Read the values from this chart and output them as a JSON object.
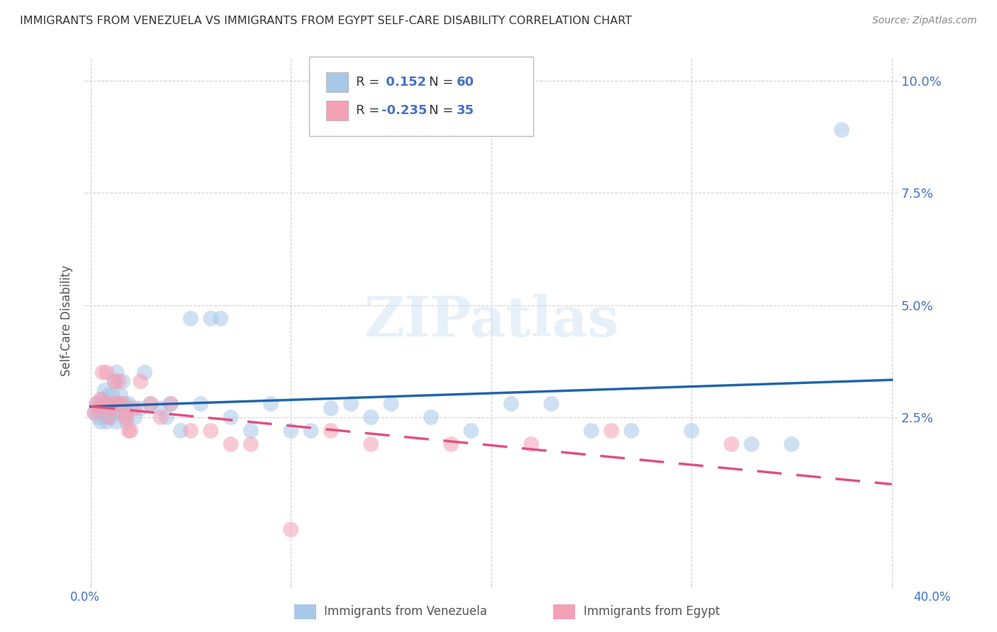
{
  "title": "IMMIGRANTS FROM VENEZUELA VS IMMIGRANTS FROM EGYPT SELF-CARE DISABILITY CORRELATION CHART",
  "source": "Source: ZipAtlas.com",
  "ylabel": "Self-Care Disability",
  "xlim": [
    0.0,
    0.4
  ],
  "ylim": [
    -0.012,
    0.105
  ],
  "venezuela_R": 0.152,
  "venezuela_N": 60,
  "egypt_R": -0.235,
  "egypt_N": 35,
  "venezuela_color": "#a8c8e8",
  "egypt_color": "#f4a0b5",
  "venezuela_line_color": "#2166ac",
  "egypt_line_color": "#e05080",
  "background_color": "#ffffff",
  "yticks": [
    0.025,
    0.05,
    0.075,
    0.1
  ],
  "ytick_labels": [
    "2.5%",
    "5.0%",
    "7.5%",
    "10.0%"
  ],
  "xtick_positions": [
    0.0,
    0.1,
    0.2,
    0.3,
    0.4
  ],
  "venezuela_x": [
    0.002,
    0.003,
    0.004,
    0.005,
    0.005,
    0.006,
    0.006,
    0.007,
    0.007,
    0.008,
    0.008,
    0.009,
    0.009,
    0.01,
    0.01,
    0.011,
    0.011,
    0.012,
    0.012,
    0.013,
    0.013,
    0.014,
    0.015,
    0.015,
    0.016,
    0.017,
    0.018,
    0.019,
    0.02,
    0.022,
    0.025,
    0.027,
    0.03,
    0.035,
    0.038,
    0.04,
    0.045,
    0.05,
    0.055,
    0.06,
    0.065,
    0.07,
    0.08,
    0.09,
    0.1,
    0.11,
    0.12,
    0.13,
    0.14,
    0.15,
    0.17,
    0.19,
    0.21,
    0.23,
    0.25,
    0.27,
    0.3,
    0.33,
    0.35,
    0.375
  ],
  "venezuela_y": [
    0.026,
    0.028,
    0.025,
    0.027,
    0.024,
    0.029,
    0.026,
    0.031,
    0.025,
    0.028,
    0.024,
    0.03,
    0.026,
    0.028,
    0.025,
    0.03,
    0.026,
    0.033,
    0.027,
    0.035,
    0.024,
    0.028,
    0.03,
    0.026,
    0.033,
    0.028,
    0.024,
    0.028,
    0.027,
    0.025,
    0.027,
    0.035,
    0.028,
    0.027,
    0.025,
    0.028,
    0.022,
    0.047,
    0.028,
    0.047,
    0.047,
    0.025,
    0.022,
    0.028,
    0.022,
    0.022,
    0.027,
    0.028,
    0.025,
    0.028,
    0.025,
    0.022,
    0.028,
    0.028,
    0.022,
    0.022,
    0.022,
    0.019,
    0.019,
    0.089
  ],
  "egypt_x": [
    0.002,
    0.003,
    0.004,
    0.005,
    0.006,
    0.007,
    0.008,
    0.009,
    0.01,
    0.011,
    0.012,
    0.013,
    0.014,
    0.015,
    0.016,
    0.017,
    0.018,
    0.019,
    0.02,
    0.022,
    0.025,
    0.03,
    0.035,
    0.04,
    0.05,
    0.06,
    0.07,
    0.08,
    0.1,
    0.12,
    0.14,
    0.18,
    0.22,
    0.26,
    0.32
  ],
  "egypt_y": [
    0.026,
    0.028,
    0.027,
    0.029,
    0.035,
    0.028,
    0.035,
    0.025,
    0.028,
    0.027,
    0.033,
    0.028,
    0.033,
    0.028,
    0.028,
    0.025,
    0.025,
    0.022,
    0.022,
    0.027,
    0.033,
    0.028,
    0.025,
    0.028,
    0.022,
    0.022,
    0.019,
    0.019,
    0.0,
    0.022,
    0.019,
    0.019,
    0.019,
    0.022,
    0.019
  ]
}
